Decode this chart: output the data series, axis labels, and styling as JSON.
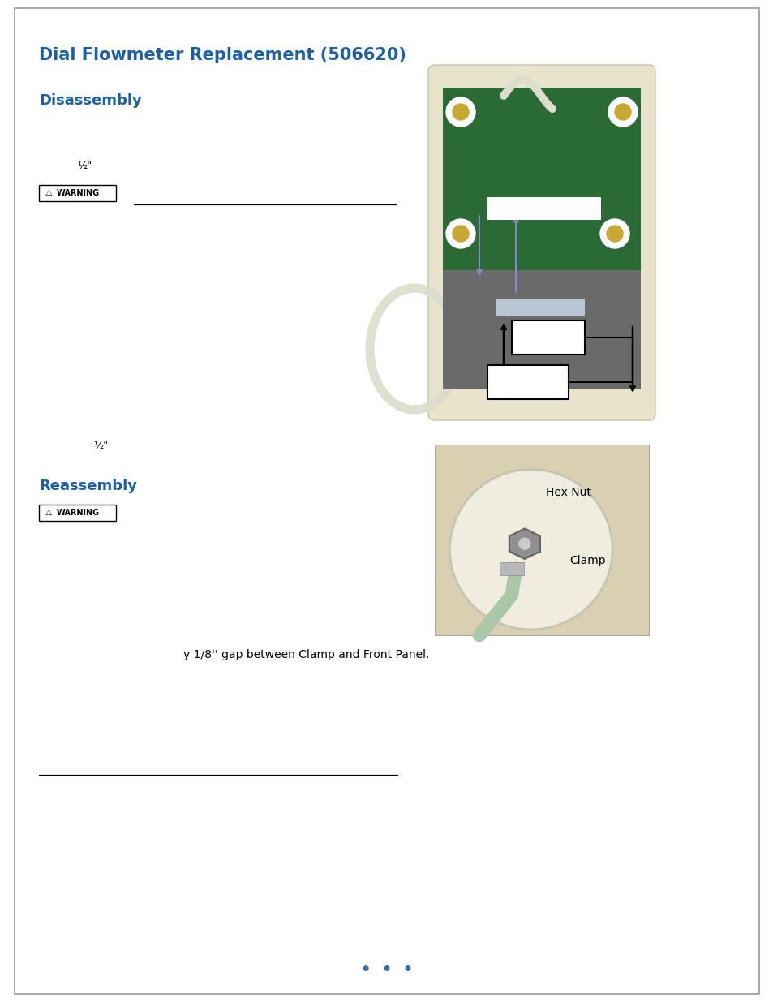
{
  "title": "Dial Flowmeter Replacement (506620)",
  "title_color": "#1a5fa8",
  "title_fontsize": 15,
  "section1": "Disassembly",
  "section1_color": "#1a5fa8",
  "section1_fontsize": 13,
  "section2": "Reassembly",
  "section2_color": "#1a5fa8",
  "section2_fontsize": 13,
  "bg_color": "#ffffff",
  "page_border_color": "#888888",
  "footer_dots": "•  •  •",
  "footer_color": "#3a6ea5",
  "bottom_text": "y 1/8'' gap between Clamp and Front Panel.",
  "half_inch": "½\""
}
